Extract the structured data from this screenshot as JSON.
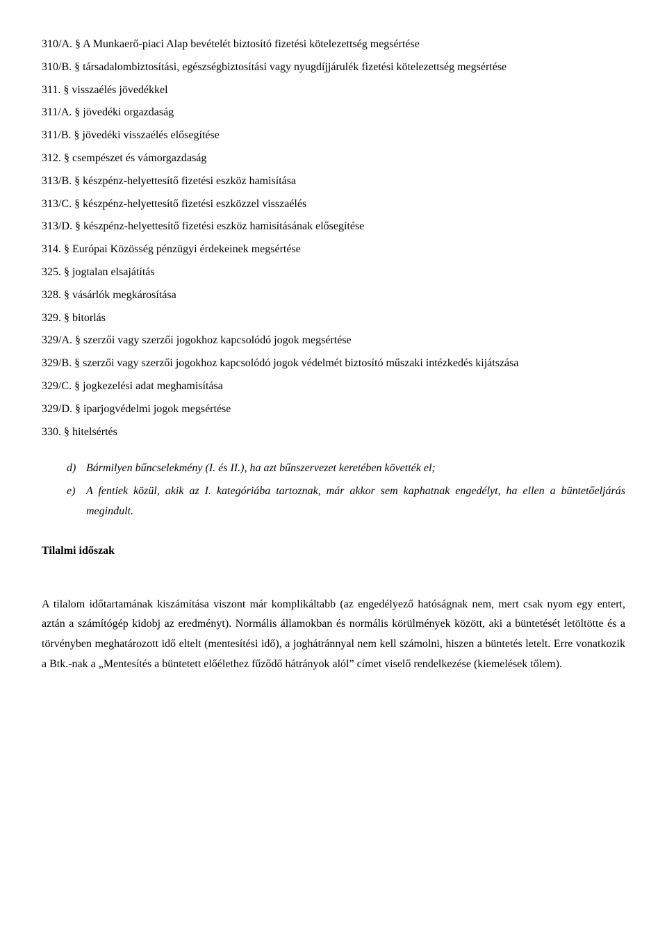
{
  "statutes": [
    "310/A. § A Munkaerő-piaci Alap bevételét biztosító fizetési kötelezettség megsértése",
    "310/B. § társadalombiztosítási, egészségbiztosítási vagy nyugdíjjárulék fizetési kötelezettség megsértése",
    "311. § visszaélés jövedékkel",
    "311/A. § jövedéki orgazdaság",
    "311/B. § jövedéki visszaélés elősegítése",
    "312. § csempészet és vámorgazdaság",
    "313/B. § készpénz-helyettesítő fizetési eszköz hamisítása",
    "313/C. § készpénz-helyettesítő fizetési eszközzel visszaélés",
    "313/D. § készpénz-helyettesítő fizetési eszköz hamisításának elősegítése",
    "314. § Európai Közösség pénzügyi érdekeinek megsértése",
    "325. § jogtalan elsajátítás",
    "328. § vásárlók megkárosítása",
    "329. § bitorlás",
    "329/A. § szerzői vagy szerzői jogokhoz kapcsolódó jogok megsértése",
    "329/B. § szerzői vagy szerzői jogokhoz kapcsolódó jogok védelmét biztosító műszaki intézkedés kijátszása",
    "329/C. § jogkezelési adat meghamisítása",
    "329/D. § iparjogvédelmi jogok megsértése",
    "330. § hitelsértés"
  ],
  "list": {
    "d": {
      "marker": "d)",
      "text": "Bármilyen bűncselekmény (I. és II.), ha azt bűnszervezet keretében követték el;"
    },
    "e": {
      "marker": "e)",
      "text": "A fentiek közül, akik az I. kategóriába tartoznak, már akkor sem kaphatnak engedélyt, ha ellen a büntetőeljárás megindult."
    }
  },
  "heading": "Tilalmi időszak",
  "body": "A tilalom időtartamának kiszámítása viszont már komplikáltabb (az engedélyező hatóságnak nem, mert csak nyom egy entert, aztán a számítógép kidobj az eredményt). Normális államokban és normális körülmények között, aki a büntetését letöltötte és a törvényben meghatározott idő eltelt (mentesítési idő), a joghátránnyal nem kell számolni, hiszen a büntetés letelt. Erre vonatkozik a Btk.-nak a „Mentesítés a büntetett előélethez fűződő hátrányok alól” címet viselő rendelkezése (kiemelések tőlem)."
}
